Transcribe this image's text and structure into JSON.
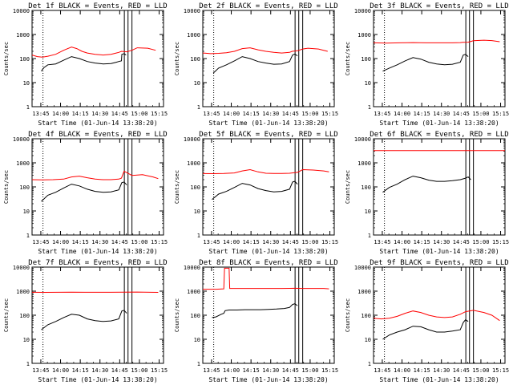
{
  "chart_data": [
    {
      "type": "line",
      "title": "Det 1f BLACK = Events, RED = LLD",
      "ylabel": "Counts/sec",
      "xlabel": "Start Time (01-Jun-14 13:38:20)",
      "x_ticks": [
        "13:45",
        "14:00",
        "14:15",
        "14:30",
        "14:45",
        "15:00",
        "15:15"
      ],
      "y_ticks": [
        "1",
        "10",
        "100",
        "1000",
        "10000"
      ],
      "ylim": [
        1,
        10000
      ],
      "xlim_minutes": [
        0,
        100
      ],
      "vlines": [
        8.3,
        70.2,
        73.0,
        76.0
      ],
      "series": [
        {
          "name": "Events",
          "color": "#000000",
          "x": [
            7,
            9,
            12,
            18,
            24,
            30,
            36,
            42,
            48,
            54,
            60,
            64,
            66,
            68,
            68.3,
            70,
            71.5
          ],
          "y": [
            30,
            42,
            55,
            60,
            85,
            120,
            100,
            75,
            65,
            60,
            62,
            70,
            75,
            80,
            150,
            160,
            140
          ]
        },
        {
          "name": "LLD",
          "color": "#ff0000",
          "x": [
            0,
            4,
            8,
            12,
            18,
            24,
            30,
            34,
            38,
            42,
            48,
            54,
            60,
            64,
            66,
            68,
            72,
            76,
            80,
            88,
            94
          ],
          "y": [
            140,
            120,
            115,
            125,
            150,
            220,
            300,
            260,
            200,
            170,
            150,
            140,
            150,
            170,
            180,
            200,
            190,
            220,
            280,
            270,
            220
          ]
        }
      ]
    },
    {
      "type": "line",
      "title": "Det 2f BLACK = Events, RED = LLD",
      "ylabel": "Counts/sec",
      "xlabel": "Start Time (01-Jun-14 13:38:20)",
      "x_ticks": [
        "13:45",
        "14:00",
        "14:15",
        "14:30",
        "14:45",
        "15:00",
        "15:15"
      ],
      "y_ticks": [
        "1",
        "10",
        "100",
        "1000",
        "10000"
      ],
      "ylim": [
        1,
        10000
      ],
      "xlim_minutes": [
        0,
        100
      ],
      "vlines": [
        8.3,
        70.2,
        73.0,
        76.0
      ],
      "series": [
        {
          "name": "Events",
          "color": "#000000",
          "x": [
            8,
            12,
            18,
            24,
            30,
            36,
            42,
            48,
            54,
            60,
            66,
            68.3,
            70,
            72
          ],
          "y": [
            25,
            40,
            55,
            80,
            120,
            100,
            75,
            65,
            58,
            60,
            75,
            140,
            155,
            130
          ]
        },
        {
          "name": "LLD",
          "color": "#ff0000",
          "x": [
            0,
            6,
            12,
            18,
            24,
            30,
            36,
            42,
            48,
            54,
            60,
            66,
            68,
            72,
            76,
            80,
            88,
            95
          ],
          "y": [
            170,
            160,
            165,
            175,
            200,
            260,
            280,
            230,
            200,
            180,
            170,
            180,
            200,
            210,
            250,
            270,
            250,
            200
          ]
        }
      ]
    },
    {
      "type": "line",
      "title": "Det 3f BLACK = Events, RED = LLD",
      "ylabel": "Counts/sec",
      "xlabel": "Start Time (01-Jun-14 13:38:20)",
      "x_ticks": [
        "13:45",
        "14:00",
        "14:15",
        "14:30",
        "14:45",
        "15:00",
        "15:15"
      ],
      "y_ticks": [
        "1",
        "10",
        "100",
        "1000",
        "10000"
      ],
      "ylim": [
        1,
        10000
      ],
      "xlim_minutes": [
        0,
        100
      ],
      "vlines": [
        8.3,
        70.2,
        73.0,
        76.0
      ],
      "series": [
        {
          "name": "Events",
          "color": "#000000",
          "x": [
            7,
            12,
            18,
            24,
            30,
            36,
            42,
            48,
            54,
            60,
            66,
            68.3,
            70,
            72
          ],
          "y": [
            30,
            40,
            55,
            80,
            110,
            95,
            70,
            60,
            55,
            58,
            70,
            140,
            150,
            120
          ]
        },
        {
          "name": "LLD",
          "color": "#ff0000",
          "x": [
            0,
            10,
            20,
            30,
            40,
            50,
            60,
            66,
            68,
            72,
            76,
            84,
            90,
            96
          ],
          "y": [
            450,
            440,
            450,
            460,
            450,
            450,
            450,
            460,
            470,
            480,
            550,
            580,
            560,
            500
          ]
        }
      ]
    },
    {
      "type": "line",
      "title": "Det 4f BLACK = Events, RED = LLD",
      "ylabel": "Counts/sec",
      "xlabel": "Start Time (01-Jun-14 13:38:20)",
      "x_ticks": [
        "13:45",
        "14:00",
        "14:15",
        "14:30",
        "14:45",
        "15:00",
        "15:15"
      ],
      "y_ticks": [
        "1",
        "10",
        "100",
        "1000",
        "10000"
      ],
      "ylim": [
        1,
        10000
      ],
      "xlim_minutes": [
        0,
        100
      ],
      "vlines": [
        8.3,
        70.2,
        73.0,
        76.0
      ],
      "series": [
        {
          "name": "Events",
          "color": "#000000",
          "x": [
            7,
            12,
            18,
            24,
            30,
            36,
            42,
            48,
            54,
            60,
            66,
            68.3,
            70,
            72
          ],
          "y": [
            25,
            45,
            60,
            90,
            130,
            110,
            80,
            65,
            60,
            62,
            75,
            150,
            160,
            120
          ]
        },
        {
          "name": "LLD",
          "color": "#ff0000",
          "x": [
            0,
            8,
            16,
            24,
            30,
            36,
            42,
            48,
            54,
            60,
            66,
            68,
            70,
            76,
            84,
            92,
            96
          ],
          "y": [
            200,
            195,
            200,
            210,
            260,
            280,
            240,
            210,
            200,
            200,
            210,
            230,
            450,
            300,
            320,
            260,
            220
          ]
        }
      ]
    },
    {
      "type": "line",
      "title": "Det 5f BLACK = Events, RED = LLD",
      "ylabel": "Counts/sec",
      "xlabel": "Start Time (01-Jun-14 13:38:20)",
      "x_ticks": [
        "13:45",
        "14:00",
        "14:15",
        "14:30",
        "14:45",
        "15:00",
        "15:15"
      ],
      "y_ticks": [
        "1",
        "10",
        "100",
        "1000",
        "10000"
      ],
      "ylim": [
        1,
        10000
      ],
      "xlim_minutes": [
        0,
        100
      ],
      "vlines": [
        8.3,
        70.2,
        73.0,
        76.0
      ],
      "series": [
        {
          "name": "Events",
          "color": "#000000",
          "x": [
            7,
            12,
            18,
            24,
            30,
            36,
            42,
            48,
            54,
            60,
            66,
            68.3,
            70,
            72
          ],
          "y": [
            30,
            50,
            65,
            95,
            140,
            120,
            85,
            70,
            62,
            65,
            80,
            160,
            170,
            130
          ]
        },
        {
          "name": "LLD",
          "color": "#ff0000",
          "x": [
            0,
            8,
            16,
            24,
            30,
            36,
            42,
            48,
            54,
            60,
            66,
            68,
            72,
            76,
            84,
            92,
            96
          ],
          "y": [
            360,
            355,
            360,
            380,
            460,
            520,
            420,
            370,
            360,
            360,
            370,
            380,
            400,
            520,
            500,
            460,
            420
          ]
        }
      ]
    },
    {
      "type": "line",
      "title": "Det 6f BLACK = Events, RED = LLD",
      "ylabel": "Counts/sec",
      "xlabel": "Start Time (01-Jun-14 13:38:20)",
      "x_ticks": [
        "13:45",
        "14:00",
        "14:15",
        "14:30",
        "14:45",
        "15:00",
        "15:15"
      ],
      "y_ticks": [
        "1",
        "10",
        "100",
        "1000",
        "10000"
      ],
      "ylim": [
        1,
        10000
      ],
      "xlim_minutes": [
        0,
        100
      ],
      "vlines": [
        8.3,
        70.2,
        73.0,
        76.0
      ],
      "series": [
        {
          "name": "Events",
          "color": "#000000",
          "x": [
            7,
            12,
            18,
            24,
            30,
            36,
            42,
            48,
            54,
            60,
            66,
            70,
            72,
            74
          ],
          "y": [
            60,
            95,
            130,
            200,
            280,
            240,
            190,
            170,
            170,
            180,
            200,
            230,
            260,
            200
          ]
        },
        {
          "name": "LLD",
          "color": "#ff0000",
          "x": [
            0,
            100
          ],
          "y": [
            3200,
            3200
          ]
        }
      ]
    },
    {
      "type": "line",
      "title": "Det 7f BLACK = Events, RED = LLD",
      "ylabel": "Counts/sec",
      "xlabel": "Start Time (01-Jun-14 13:38:20)",
      "x_ticks": [
        "13:45",
        "14:00",
        "14:15",
        "14:30",
        "14:45",
        "15:00",
        "15:15"
      ],
      "y_ticks": [
        "1",
        "10",
        "100",
        "1000",
        "10000"
      ],
      "ylim": [
        1,
        10000
      ],
      "xlim_minutes": [
        0,
        100
      ],
      "vlines": [
        8.3,
        70.2,
        73.0,
        76.0
      ],
      "series": [
        {
          "name": "Events",
          "color": "#000000",
          "x": [
            7,
            12,
            18,
            24,
            30,
            36,
            42,
            48,
            54,
            60,
            66,
            68.3,
            70,
            72
          ],
          "y": [
            25,
            40,
            55,
            80,
            110,
            100,
            70,
            60,
            55,
            58,
            70,
            150,
            160,
            120
          ]
        },
        {
          "name": "LLD",
          "color": "#ff0000",
          "x": [
            0,
            10,
            20,
            30,
            40,
            50,
            60,
            70,
            80,
            90,
            96
          ],
          "y": [
            900,
            890,
            900,
            910,
            900,
            900,
            900,
            910,
            920,
            900,
            890
          ]
        }
      ]
    },
    {
      "type": "line",
      "title": "Det 8f BLACK = Events, RED = LLD",
      "ylabel": "Counts/sec",
      "xlabel": "Start Time (01-Jun-14 13:38:20)",
      "x_ticks": [
        "13:45",
        "14:00",
        "14:15",
        "14:30",
        "14:45",
        "15:00",
        "15:15"
      ],
      "y_ticks": [
        "1",
        "10",
        "100",
        "1000",
        "10000"
      ],
      "ylim": [
        1,
        10000
      ],
      "xlim_minutes": [
        0,
        100
      ],
      "vlines": [
        8.3,
        70.2,
        73.0,
        76.0
      ],
      "series": [
        {
          "name": "Events",
          "color": "#000000",
          "x": [
            7,
            10,
            14,
            16,
            17,
            20,
            26,
            32,
            38,
            44,
            50,
            56,
            62,
            66,
            68.3,
            70,
            72
          ],
          "y": [
            80,
            85,
            110,
            120,
            155,
            165,
            165,
            170,
            170,
            170,
            175,
            180,
            190,
            210,
            280,
            300,
            250
          ]
        },
        {
          "name": "LLD",
          "color": "#ff0000",
          "x": [
            0,
            10,
            16,
            16.5,
            20,
            20.5,
            24,
            36,
            48,
            60,
            66,
            70,
            76,
            84,
            92,
            96
          ],
          "y": [
            1200,
            1200,
            1250,
            9000,
            9000,
            1300,
            1300,
            1300,
            1300,
            1300,
            1310,
            1320,
            1300,
            1300,
            1300,
            1250
          ]
        }
      ]
    },
    {
      "type": "line",
      "title": "Det 9f BLACK = Events, RED = LLD",
      "ylabel": "Counts/sec",
      "xlabel": "Start Time (01-Jun-14 13:38:20)",
      "x_ticks": [
        "13:45",
        "14:00",
        "14:15",
        "14:30",
        "14:45",
        "15:00",
        "15:15"
      ],
      "y_ticks": [
        "1",
        "10",
        "100",
        "1000",
        "10000"
      ],
      "ylim": [
        1,
        10000
      ],
      "xlim_minutes": [
        0,
        100
      ],
      "vlines": [
        8.3,
        70.2,
        73.0,
        76.0
      ],
      "series": [
        {
          "name": "Events",
          "color": "#000000",
          "x": [
            7,
            12,
            18,
            24,
            30,
            36,
            42,
            48,
            54,
            60,
            66,
            68.3,
            70,
            72
          ],
          "y": [
            10,
            15,
            20,
            25,
            35,
            33,
            25,
            20,
            20,
            22,
            25,
            50,
            65,
            55
          ]
        },
        {
          "name": "LLD",
          "color": "#ff0000",
          "x": [
            0,
            6,
            12,
            18,
            24,
            30,
            36,
            42,
            48,
            54,
            60,
            66,
            70,
            76,
            84,
            90,
            96
          ],
          "y": [
            75,
            70,
            75,
            90,
            120,
            150,
            130,
            100,
            85,
            80,
            85,
            110,
            140,
            160,
            130,
            100,
            60
          ]
        }
      ]
    }
  ]
}
